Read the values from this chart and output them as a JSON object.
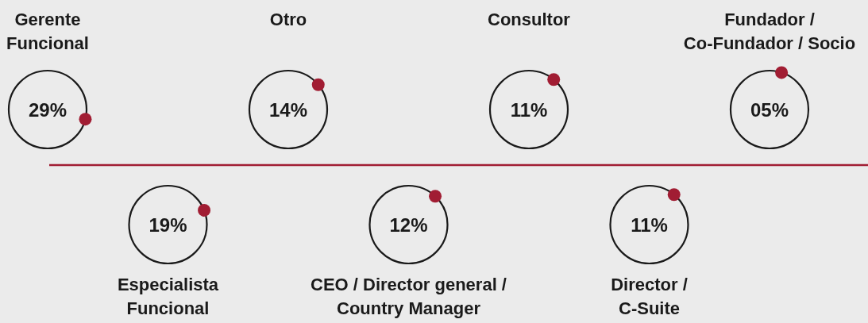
{
  "chart_data": {
    "type": "other",
    "categories": [
      "Gerente\nFuncional",
      "Especialista\nFuncional",
      "Otro",
      "CEO / Director general /\nCountry Manager",
      "Consultor",
      "Director /\nC-Suite",
      "Fundador /\nCo-Fundador / Socio"
    ],
    "values": [
      29,
      19,
      14,
      12,
      11,
      11,
      5
    ],
    "value_labels": [
      "29%",
      "19%",
      "14%",
      "12%",
      "11%",
      "11%",
      "05%"
    ],
    "color": "#a11d33"
  }
}
